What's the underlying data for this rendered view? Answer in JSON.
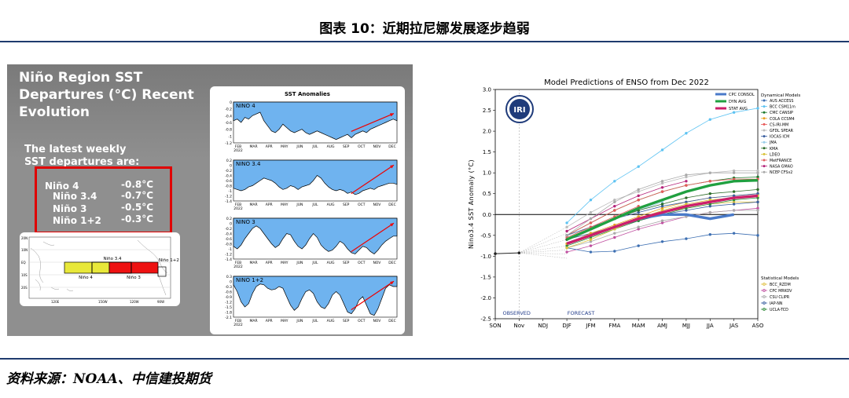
{
  "figure": {
    "title": "图表 10：近期拉尼娜发展逐步趋弱",
    "source": "资料来源：NOAA、中信建投期货"
  },
  "left_panel": {
    "title_lines": [
      "Niño Region SST",
      "Departures (°C) Recent",
      "Evolution"
    ],
    "subtitle_lines": [
      "The latest weekly",
      "SST departures are:"
    ],
    "departures": [
      {
        "region": "Niño 4",
        "value": "-0.8°C"
      },
      {
        "region": "Niño 3.4",
        "value": "-0.7°C"
      },
      {
        "region": "Niño 3",
        "value": "-0.5°C"
      },
      {
        "region": "Niño 1+2",
        "value": "-0.3°C"
      }
    ],
    "map": {
      "lat_labels": [
        "20N",
        "10N",
        "EQ",
        "10S",
        "20S"
      ],
      "lon_labels": [
        "120E",
        "150W",
        "120W",
        "90W"
      ],
      "region_labels": [
        "Niño 3.4",
        "Niño 4",
        "Niño 3",
        "Niño 1+2"
      ],
      "colors": {
        "nino4": "#e8e83a",
        "nino3": "#ee1111"
      }
    },
    "anomalies": {
      "title": "SST Anomalies",
      "months": [
        "FEB",
        "MAR",
        "APR",
        "MAY",
        "JUN",
        "JUL",
        "AUG",
        "SEP",
        "OCT",
        "NOV",
        "DEC"
      ],
      "years": [
        "2022",
        "2022",
        "2022",
        "2022"
      ],
      "fill_color": "#6fb3ef",
      "panels": [
        {
          "name": "NINO 4",
          "ticks": [
            "0",
            "-0.2",
            "-0.4",
            "-0.6",
            "-0.8",
            "-1",
            "-1.2"
          ],
          "series": [
            -0.55,
            -0.5,
            -0.6,
            -0.45,
            -0.5,
            -0.4,
            -0.35,
            -0.3,
            -0.55,
            -0.7,
            -0.85,
            -0.9,
            -0.8,
            -0.65,
            -0.75,
            -0.85,
            -0.9,
            -0.85,
            -0.8,
            -0.9,
            -0.95,
            -0.9,
            -0.85,
            -0.9,
            -0.95,
            -1.0,
            -1.05,
            -1.1,
            -1.05,
            -1.0,
            -0.95,
            -1.05,
            -0.95,
            -0.9,
            -0.85,
            -0.9,
            -0.8,
            -0.75,
            -0.7,
            -0.65,
            -0.6,
            -0.55,
            -0.5,
            -0.55
          ]
        },
        {
          "name": "NINO 3.4",
          "ticks": [
            "0.2",
            "0",
            "-0.2",
            "-0.4",
            "-0.6",
            "-0.8",
            "-1",
            "-1.2",
            "-1.4"
          ],
          "series": [
            -0.9,
            -0.95,
            -1.0,
            -0.95,
            -0.85,
            -0.8,
            -0.7,
            -0.6,
            -0.5,
            -0.55,
            -0.6,
            -0.7,
            -0.85,
            -0.95,
            -0.9,
            -0.8,
            -0.85,
            -0.95,
            -0.85,
            -0.8,
            -0.75,
            -0.6,
            -0.4,
            -0.5,
            -0.7,
            -0.85,
            -0.95,
            -1.0,
            -0.95,
            -1.0,
            -1.1,
            -1.05,
            -1.15,
            -1.1,
            -1.0,
            -0.95,
            -0.9,
            -0.95,
            -0.85,
            -0.8,
            -0.75,
            -0.7,
            -0.7,
            -0.75
          ]
        },
        {
          "name": "NINO 3",
          "ticks": [
            "0.2",
            "0",
            "-0.2",
            "-0.4",
            "-0.6",
            "-0.8",
            "-1",
            "-1.2",
            "-1.4"
          ],
          "series": [
            -0.9,
            -1.0,
            -0.85,
            -0.6,
            -0.4,
            -0.2,
            -0.1,
            -0.2,
            -0.4,
            -0.6,
            -0.8,
            -0.95,
            -0.85,
            -0.6,
            -0.4,
            -0.45,
            -0.7,
            -0.9,
            -1.0,
            -0.85,
            -0.6,
            -0.4,
            -0.55,
            -0.85,
            -1.0,
            -1.1,
            -1.05,
            -0.9,
            -0.7,
            -0.8,
            -1.0,
            -1.15,
            -1.2,
            -1.05,
            -0.9,
            -0.95,
            -1.1,
            -1.2,
            -1.05,
            -0.85,
            -0.7,
            -0.6,
            -0.5,
            -0.5
          ]
        },
        {
          "name": "NINO 1+2",
          "ticks": [
            "0.3",
            "0",
            "-0.3",
            "-0.6",
            "-0.9",
            "-1.2",
            "-1.5",
            "-1.8",
            "-2.1"
          ],
          "series": [
            -0.2,
            -0.6,
            -1.2,
            -1.5,
            -1.3,
            -0.7,
            -0.3,
            -0.15,
            -0.2,
            -0.4,
            -0.5,
            -0.45,
            -0.3,
            -0.4,
            -0.9,
            -1.4,
            -1.7,
            -1.5,
            -1.0,
            -0.6,
            -0.5,
            -0.7,
            -1.2,
            -1.5,
            -1.6,
            -1.3,
            -0.8,
            -0.6,
            -0.8,
            -1.3,
            -1.8,
            -1.9,
            -1.6,
            -1.1,
            -0.9,
            -1.4,
            -1.9,
            -2.0,
            -1.6,
            -1.0,
            -0.4,
            -0.2,
            -0.3,
            -0.3
          ]
        }
      ]
    }
  },
  "chart_data": {
    "type": "line",
    "title": "Model Predictions of ENSO from Dec 2022",
    "xlabel": "",
    "ylabel": "Nino3.4 SST Anomaly (°C)",
    "ylim": [
      -2.5,
      3.0
    ],
    "yticks": [
      3.0,
      2.5,
      2.0,
      1.5,
      1.0,
      0.5,
      0.0,
      -0.5,
      -1.0,
      -1.5,
      -2.0,
      -2.5
    ],
    "x": [
      "SON",
      "Nov",
      "NDJ",
      "DJF",
      "JFM",
      "FMA",
      "MAM",
      "AMJ",
      "MJJ",
      "JJA",
      "JAS",
      "ASO"
    ],
    "observed_label": "OBSERVED",
    "forecast_label": "FORECAST",
    "logo_text": "IRI",
    "dynamical_header": "Dynamical Models",
    "statistical_header": "Statistical Models",
    "observed": {
      "x": [
        "SON",
        "Nov"
      ],
      "values": [
        -0.94,
        -0.92
      ]
    },
    "averages": [
      {
        "name": "CPC CONSOL",
        "color": "#4a7ac9",
        "values": [
          null,
          null,
          null,
          -0.7,
          -0.5,
          -0.3,
          -0.1,
          0.0,
          0.0,
          -0.1,
          -0.0,
          null
        ]
      },
      {
        "name": "DYN AVG",
        "color": "#20a040",
        "values": [
          null,
          null,
          null,
          -0.6,
          -0.35,
          -0.1,
          0.15,
          0.35,
          0.55,
          0.7,
          0.8,
          0.82
        ]
      },
      {
        "name": "STAT AVG",
        "color": "#cc1f6a",
        "values": [
          null,
          null,
          null,
          -0.7,
          -0.5,
          -0.3,
          -0.1,
          0.05,
          0.2,
          0.3,
          0.4,
          0.45
        ]
      }
    ],
    "dynamical": [
      {
        "name": "AUS ACCESS",
        "color": "#3d6fb2",
        "values": [
          null,
          null,
          null,
          -0.8,
          -0.9,
          -0.88,
          -0.75,
          -0.65,
          -0.58,
          -0.48,
          -0.45,
          -0.5
        ]
      },
      {
        "name": "BCC CSM11m",
        "color": "#5ec3f2",
        "values": [
          null,
          null,
          null,
          -0.2,
          0.35,
          0.8,
          1.15,
          1.55,
          1.95,
          2.28,
          2.45,
          2.55
        ]
      },
      {
        "name": "CMC CANSIP",
        "color": "#1d7a2e",
        "values": [
          null,
          null,
          null,
          -0.5,
          -0.2,
          0.1,
          0.35,
          0.55,
          0.7,
          0.8,
          0.88,
          0.9
        ]
      },
      {
        "name": "COLA CCSM4",
        "color": "#e8a020",
        "values": [
          null,
          null,
          null,
          -0.7,
          -0.45,
          -0.25,
          -0.05,
          0.15,
          0.3,
          0.4,
          0.45,
          0.5
        ]
      },
      {
        "name": "CS-IRI-MM",
        "color": "#e85a5a",
        "values": [
          null,
          null,
          null,
          -0.5,
          -0.2,
          0.1,
          0.35,
          0.55,
          0.7,
          0.8,
          0.85,
          0.85
        ]
      },
      {
        "name": "GFDL SPEAR",
        "color": "#bbbbbb",
        "values": [
          null,
          null,
          null,
          -0.3,
          0.05,
          0.35,
          0.55,
          0.75,
          0.9,
          1.0,
          1.05,
          1.05
        ]
      },
      {
        "name": "IOCAS ICM",
        "color": "#3a5fa0",
        "values": [
          null,
          null,
          null,
          -0.5,
          -0.3,
          -0.1,
          0.05,
          0.2,
          0.3,
          0.4,
          0.45,
          0.5
        ]
      },
      {
        "name": "JMA",
        "color": "#9acde8",
        "values": [
          null,
          null,
          null,
          -0.6,
          -0.35,
          -0.1,
          0.1,
          0.3,
          null,
          null,
          null,
          null
        ]
      },
      {
        "name": "KMA",
        "color": "#2e6d2a",
        "values": [
          null,
          null,
          null,
          -0.6,
          -0.35,
          -0.1,
          0.1,
          0.25,
          0.4,
          0.5,
          0.55,
          0.6
        ]
      },
      {
        "name": "LDEO",
        "color": "#d9c33a",
        "values": [
          null,
          null,
          null,
          -0.8,
          -0.6,
          -0.35,
          -0.1,
          0.1,
          0.25,
          0.35,
          0.4,
          0.45
        ]
      },
      {
        "name": "MetFRANCE",
        "color": "#e06060",
        "values": [
          null,
          null,
          null,
          -0.55,
          -0.3,
          -0.05,
          0.2,
          null,
          null,
          null,
          null,
          null
        ]
      },
      {
        "name": "NASA GMAO",
        "color": "#b5247a",
        "values": [
          null,
          null,
          null,
          -0.4,
          -0.1,
          0.2,
          0.45,
          0.65,
          0.8,
          null,
          null,
          null
        ]
      },
      {
        "name": "NCEP CFSv2",
        "color": "#aaaaaa",
        "values": [
          null,
          null,
          null,
          -0.5,
          -0.1,
          0.3,
          0.6,
          0.8,
          0.95,
          1.0,
          1.0,
          1.0
        ]
      }
    ],
    "statistical": [
      {
        "name": "BCC_RZDM",
        "color": "#e0c040",
        "values": [
          null,
          null,
          null,
          -0.7,
          -0.5,
          -0.3,
          -0.1,
          0.05,
          0.15,
          0.25,
          0.3,
          0.3
        ]
      },
      {
        "name": "CPC MRKOV",
        "color": "#c050a0",
        "values": [
          null,
          null,
          null,
          -0.9,
          -0.75,
          -0.55,
          -0.35,
          -0.2,
          -0.05,
          0.05,
          0.1,
          0.15
        ]
      },
      {
        "name": "CSU CLIPR",
        "color": "#aaaaaa",
        "values": [
          null,
          null,
          null,
          -0.8,
          -0.65,
          -0.45,
          -0.3,
          -0.15,
          -0.05,
          0.05,
          0.1,
          0.1
        ]
      },
      {
        "name": "IAP-NN",
        "color": "#3a5fa0",
        "values": [
          null,
          null,
          null,
          -0.6,
          -0.45,
          -0.3,
          -0.15,
          0.0,
          0.1,
          0.2,
          0.25,
          0.3
        ]
      },
      {
        "name": "UCLA-TCD",
        "color": "#2e8a3a",
        "values": [
          null,
          null,
          null,
          -0.75,
          -0.55,
          -0.35,
          -0.15,
          0.0,
          0.15,
          0.25,
          0.35,
          0.4
        ]
      }
    ],
    "grid": false,
    "legend_position": "right"
  }
}
